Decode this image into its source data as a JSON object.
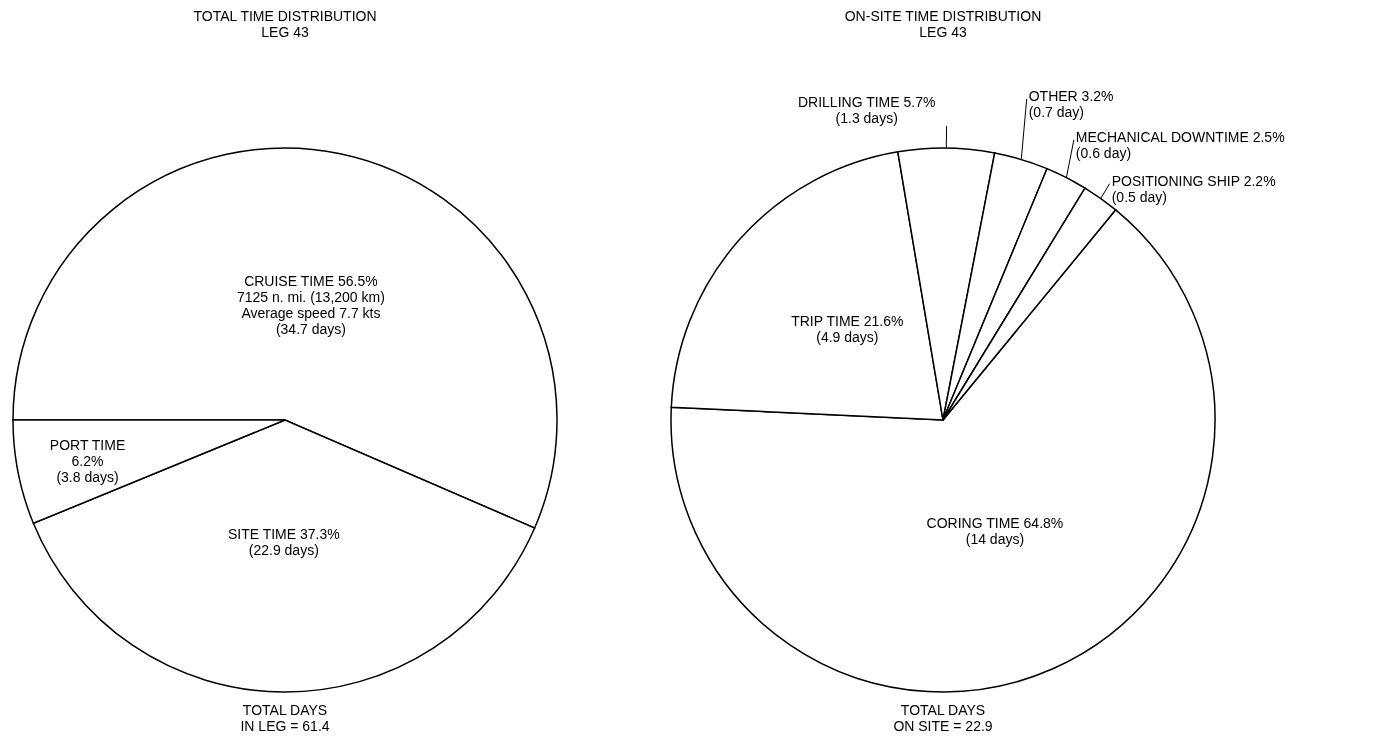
{
  "chart_data": [
    {
      "type": "pie",
      "title": "TOTAL TIME DISTRIBUTION\nLEG 43",
      "categories": [
        "CRUISE TIME 56.5%\n7125 n. mi. (13,200 km)\nAverage speed 7.7 kts\n(34.7 days)",
        "SITE TIME 37.3%\n(22.9 days)",
        "PORT TIME\n6.2%\n(3.8 days)"
      ],
      "values": [
        56.5,
        37.3,
        6.2
      ],
      "colors": [
        "#ffffff",
        "#ffffff",
        "#ffffff"
      ],
      "annotations": [
        "TOTAL DAYS\nIN LEG = 61.4"
      ]
    },
    {
      "type": "pie",
      "title": "ON-SITE TIME DISTRIBUTION\nLEG 43",
      "categories": [
        "CORING TIME 64.8%\n(14 days)",
        "TRIP TIME 21.6%\n(4.9 days)",
        "DRILLING TIME 5.7%\n(1.3 days)",
        "OTHER 3.2%\n(0.7 day)",
        "MECHANICAL DOWNTIME 2.5%\n(0.6 day)",
        "POSITIONING SHIP 2.2%\n(0.5 day)"
      ],
      "values": [
        64.8,
        21.6,
        5.7,
        3.2,
        2.5,
        2.2
      ],
      "colors": [
        "#ffffff",
        "#ffffff",
        "#ffffff",
        "#ffffff",
        "#ffffff",
        "#ffffff"
      ],
      "annotations": [
        "TOTAL DAYS\nON SITE = 22.9"
      ]
    }
  ]
}
